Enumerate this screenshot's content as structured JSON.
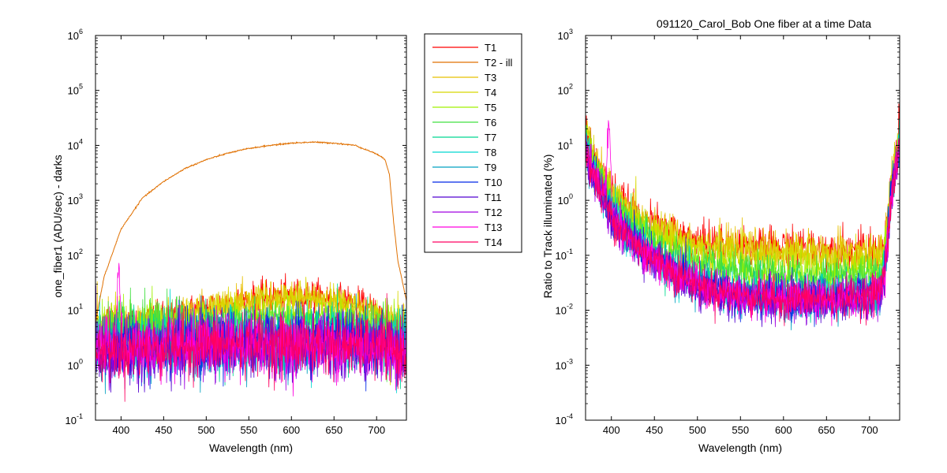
{
  "chart_data": [
    {
      "type": "line",
      "title": "",
      "xlabel": "Wavelength (nm)",
      "ylabel": "one_fiber1  (ADU/sec) - darks",
      "yscale": "log",
      "xlim": [
        370,
        735
      ],
      "ylim": [
        0.1,
        1000000
      ],
      "xticks": [
        400,
        450,
        500,
        550,
        600,
        650,
        700
      ],
      "yticks": [
        {
          "base": "10",
          "exp": "-1",
          "value": 0.1
        },
        {
          "base": "10",
          "exp": "0",
          "value": 1
        },
        {
          "base": "10",
          "exp": "1",
          "value": 10
        },
        {
          "base": "10",
          "exp": "2",
          "value": 100
        },
        {
          "base": "10",
          "exp": "3",
          "value": 1000
        },
        {
          "base": "10",
          "exp": "4",
          "value": 10000
        },
        {
          "base": "10",
          "exp": "5",
          "value": 100000
        },
        {
          "base": "10",
          "exp": "6",
          "value": 1000000
        }
      ],
      "grid": false,
      "x": [
        370,
        380,
        400,
        425,
        450,
        475,
        500,
        525,
        550,
        575,
        600,
        625,
        650,
        675,
        700,
        710,
        715,
        720,
        725,
        735
      ],
      "series": [
        {
          "name": "T2 - ill",
          "color": "#e07000",
          "values": [
            6,
            40,
            300,
            1100,
            2200,
            3800,
            5500,
            7200,
            8800,
            10000,
            11000,
            11500,
            11000,
            10000,
            7000,
            5500,
            3000,
            400,
            80,
            15
          ]
        }
      ],
      "noise_series": [
        {
          "name": "T1",
          "color": "#ff0000",
          "level": [
            4,
            4.5,
            5,
            6,
            7,
            9,
            11,
            13,
            15,
            17,
            18,
            18,
            16,
            13,
            9,
            7,
            6,
            5.5,
            5,
            4.5
          ]
        },
        {
          "name": "T3",
          "color": "#e8c000",
          "level": [
            4,
            4.5,
            5,
            6,
            7,
            9,
            11,
            13,
            14,
            16,
            17,
            17,
            15,
            12,
            8,
            6.5,
            5.5,
            5,
            4.5,
            4
          ]
        },
        {
          "name": "T4",
          "color": "#d8d800",
          "level": [
            4,
            4.5,
            5,
            6,
            6.5,
            8,
            10,
            12,
            13,
            15,
            16,
            16,
            14,
            11,
            7.5,
            6,
            5,
            4.5,
            4.2,
            4
          ]
        },
        {
          "name": "T5",
          "color": "#a0f000",
          "level": [
            3.5,
            4,
            4.2,
            4.5,
            5,
            5.5,
            6,
            6.5,
            7,
            7.5,
            7.5,
            7.5,
            7,
            6.5,
            5.5,
            5,
            4.5,
            4.2,
            4,
            3.8
          ]
        },
        {
          "name": "T6",
          "color": "#40e040",
          "level": [
            3,
            3.5,
            4,
            4.2,
            4.5,
            5,
            5.5,
            6,
            6.5,
            6.8,
            7,
            7,
            6.5,
            6,
            5,
            4.5,
            4.2,
            4,
            3.8,
            3.5
          ]
        },
        {
          "name": "T7",
          "color": "#00d890",
          "level": [
            2.5,
            2.5,
            2.5,
            2.6,
            2.7,
            2.8,
            3,
            3,
            3.1,
            3.2,
            3.2,
            3.2,
            3.1,
            3,
            2.8,
            2.7,
            2.6,
            2.5,
            2.5,
            2.5
          ]
        },
        {
          "name": "T8",
          "color": "#00d8d0",
          "level": [
            2.2,
            2.2,
            2.2,
            2.3,
            2.4,
            2.5,
            2.6,
            2.7,
            2.8,
            2.8,
            2.8,
            2.8,
            2.7,
            2.6,
            2.5,
            2.4,
            2.3,
            2.2,
            2.2,
            2.2
          ]
        },
        {
          "name": "T9",
          "color": "#00a0c0",
          "level": [
            2,
            2,
            2,
            2.1,
            2.2,
            2.3,
            2.4,
            2.5,
            2.5,
            2.5,
            2.5,
            2.5,
            2.5,
            2.4,
            2.3,
            2.2,
            2.1,
            2,
            2,
            2
          ]
        },
        {
          "name": "T10",
          "color": "#0028e8",
          "level": [
            2,
            2,
            2,
            2.1,
            2.2,
            2.3,
            2.4,
            2.5,
            2.5,
            2.5,
            2.5,
            2.5,
            2.5,
            2.4,
            2.3,
            2.2,
            2.1,
            2,
            2,
            2
          ]
        },
        {
          "name": "T11",
          "color": "#5000d0",
          "level": [
            1.8,
            1.8,
            1.8,
            1.9,
            2,
            2.1,
            2.2,
            2.3,
            2.3,
            2.3,
            2.3,
            2.3,
            2.3,
            2.2,
            2.1,
            2,
            1.9,
            1.8,
            1.8,
            1.8
          ]
        },
        {
          "name": "T12",
          "color": "#a000e0",
          "level": [
            1.8,
            1.8,
            1.8,
            1.9,
            2,
            2.1,
            2.2,
            2.3,
            2.3,
            2.3,
            2.3,
            2.3,
            2.3,
            2.2,
            2.1,
            2,
            1.9,
            1.8,
            1.8,
            1.8
          ]
        },
        {
          "name": "T13",
          "color": "#ff00e0",
          "level": [
            1.8,
            2,
            2.2,
            2,
            2,
            2.1,
            2.2,
            2.3,
            2.3,
            2.3,
            2.3,
            2.3,
            2.3,
            2.2,
            2.1,
            2,
            1.9,
            1.8,
            1.8,
            1.8
          ],
          "peak": {
            "x": 397,
            "value": 60
          }
        },
        {
          "name": "T14",
          "color": "#ff0060",
          "level": [
            1.9,
            1.9,
            1.9,
            2,
            2.1,
            2.2,
            2.3,
            2.4,
            2.4,
            2.4,
            2.4,
            2.4,
            2.4,
            2.3,
            2.2,
            2.1,
            2,
            1.9,
            1.9,
            1.9
          ]
        }
      ]
    },
    {
      "type": "line",
      "title": "091120_Carol_Bob  One fiber at a time Data",
      "xlabel": "Wavelength (nm)",
      "ylabel": "Ratio to Track illuminated (%)",
      "yscale": "log",
      "xlim": [
        370,
        735
      ],
      "ylim": [
        0.0001,
        1000
      ],
      "xticks": [
        400,
        450,
        500,
        550,
        600,
        650,
        700
      ],
      "yticks": [
        {
          "base": "10",
          "exp": "-4",
          "value": 0.0001
        },
        {
          "base": "10",
          "exp": "-3",
          "value": 0.001
        },
        {
          "base": "10",
          "exp": "-2",
          "value": 0.01
        },
        {
          "base": "10",
          "exp": "-1",
          "value": 0.1
        },
        {
          "base": "10",
          "exp": "0",
          "value": 1
        },
        {
          "base": "10",
          "exp": "1",
          "value": 10
        },
        {
          "base": "10",
          "exp": "2",
          "value": 100
        },
        {
          "base": "10",
          "exp": "3",
          "value": 1000
        }
      ],
      "grid": false,
      "x": [
        370,
        380,
        400,
        425,
        450,
        475,
        500,
        525,
        550,
        575,
        600,
        625,
        650,
        675,
        700,
        710,
        715,
        720,
        725,
        735
      ],
      "noise_series": [
        {
          "name": "T1",
          "color": "#ff0000",
          "level": [
            20,
            6,
            1.5,
            0.6,
            0.35,
            0.25,
            0.18,
            0.16,
            0.15,
            0.14,
            0.14,
            0.14,
            0.13,
            0.13,
            0.12,
            0.12,
            0.13,
            0.3,
            2,
            18
          ]
        },
        {
          "name": "T3",
          "color": "#e8c000",
          "level": [
            20,
            6,
            1.4,
            0.55,
            0.32,
            0.22,
            0.16,
            0.14,
            0.13,
            0.12,
            0.12,
            0.12,
            0.11,
            0.11,
            0.1,
            0.1,
            0.12,
            0.3,
            2,
            18
          ]
        },
        {
          "name": "T4",
          "color": "#d8d800",
          "level": [
            18,
            5,
            1.2,
            0.5,
            0.28,
            0.2,
            0.14,
            0.12,
            0.11,
            0.1,
            0.1,
            0.1,
            0.09,
            0.09,
            0.085,
            0.09,
            0.1,
            0.25,
            2,
            16
          ]
        },
        {
          "name": "T5",
          "color": "#a0f000",
          "level": [
            16,
            4.5,
            1,
            0.4,
            0.2,
            0.12,
            0.08,
            0.065,
            0.055,
            0.05,
            0.048,
            0.048,
            0.047,
            0.047,
            0.05,
            0.055,
            0.07,
            0.2,
            1.5,
            15
          ]
        },
        {
          "name": "T6",
          "color": "#40e040",
          "level": [
            15,
            4,
            0.9,
            0.35,
            0.17,
            0.1,
            0.07,
            0.055,
            0.048,
            0.044,
            0.042,
            0.042,
            0.041,
            0.041,
            0.044,
            0.05,
            0.06,
            0.2,
            1.5,
            14
          ]
        },
        {
          "name": "T7",
          "color": "#00d890",
          "level": [
            12,
            3,
            0.6,
            0.22,
            0.1,
            0.055,
            0.035,
            0.026,
            0.022,
            0.02,
            0.019,
            0.019,
            0.019,
            0.02,
            0.022,
            0.026,
            0.035,
            0.15,
            1.2,
            12
          ]
        },
        {
          "name": "T8",
          "color": "#00d8d0",
          "level": [
            11,
            2.8,
            0.55,
            0.2,
            0.09,
            0.05,
            0.032,
            0.024,
            0.02,
            0.018,
            0.017,
            0.017,
            0.017,
            0.018,
            0.02,
            0.024,
            0.032,
            0.14,
            1.2,
            11
          ]
        },
        {
          "name": "T9",
          "color": "#00a0c0",
          "level": [
            10,
            2.6,
            0.5,
            0.18,
            0.085,
            0.047,
            0.03,
            0.022,
            0.019,
            0.017,
            0.016,
            0.016,
            0.016,
            0.017,
            0.019,
            0.022,
            0.03,
            0.13,
            1.1,
            10
          ]
        },
        {
          "name": "T10",
          "color": "#0028e8",
          "level": [
            10,
            2.6,
            0.5,
            0.18,
            0.085,
            0.047,
            0.03,
            0.022,
            0.019,
            0.017,
            0.016,
            0.016,
            0.016,
            0.017,
            0.019,
            0.022,
            0.03,
            0.13,
            1.1,
            10
          ]
        },
        {
          "name": "T11",
          "color": "#5000d0",
          "level": [
            9,
            2.4,
            0.45,
            0.16,
            0.08,
            0.045,
            0.028,
            0.021,
            0.018,
            0.016,
            0.015,
            0.015,
            0.015,
            0.016,
            0.018,
            0.021,
            0.028,
            0.12,
            1,
            9
          ]
        },
        {
          "name": "T12",
          "color": "#a000e0",
          "level": [
            9,
            2.4,
            0.45,
            0.16,
            0.08,
            0.045,
            0.028,
            0.021,
            0.018,
            0.016,
            0.015,
            0.015,
            0.015,
            0.016,
            0.018,
            0.021,
            0.028,
            0.12,
            1,
            9
          ]
        },
        {
          "name": "T13",
          "color": "#ff00e0",
          "level": [
            9,
            2.5,
            0.6,
            0.16,
            0.08,
            0.045,
            0.028,
            0.021,
            0.018,
            0.016,
            0.015,
            0.015,
            0.015,
            0.016,
            0.018,
            0.021,
            0.028,
            0.12,
            1,
            9
          ],
          "peak": {
            "x": 397,
            "value": 30
          }
        },
        {
          "name": "T14",
          "color": "#ff0060",
          "level": [
            9.5,
            2.5,
            0.5,
            0.17,
            0.085,
            0.047,
            0.03,
            0.022,
            0.019,
            0.017,
            0.016,
            0.016,
            0.016,
            0.017,
            0.019,
            0.022,
            0.03,
            0.13,
            1,
            10
          ]
        }
      ]
    }
  ],
  "legend": {
    "placement": "between-plots",
    "entries": [
      {
        "label": "T1",
        "color": "#ff0000"
      },
      {
        "label": "T2 - ill",
        "color": "#e07000"
      },
      {
        "label": "T3",
        "color": "#e8c000"
      },
      {
        "label": "T4",
        "color": "#d8d800"
      },
      {
        "label": "T5",
        "color": "#a0f000"
      },
      {
        "label": "T6",
        "color": "#40e040"
      },
      {
        "label": "T7",
        "color": "#00d890"
      },
      {
        "label": "T8",
        "color": "#00d8d0"
      },
      {
        "label": "T9",
        "color": "#00a0c0"
      },
      {
        "label": "T10",
        "color": "#0028e8"
      },
      {
        "label": "T11",
        "color": "#5000d0"
      },
      {
        "label": "T12",
        "color": "#a000e0"
      },
      {
        "label": "T13",
        "color": "#ff00e0"
      },
      {
        "label": "T14",
        "color": "#ff0060"
      }
    ]
  }
}
